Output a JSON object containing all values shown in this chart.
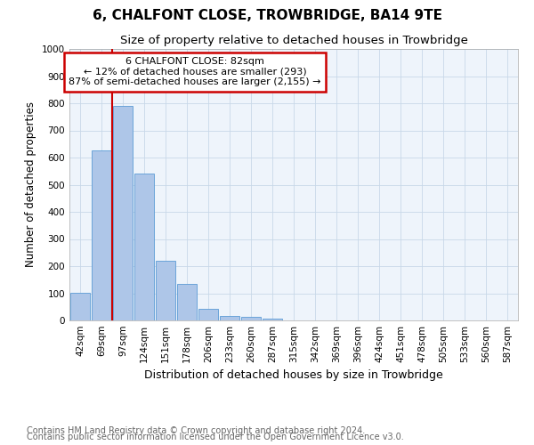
{
  "title": "6, CHALFONT CLOSE, TROWBRIDGE, BA14 9TE",
  "subtitle": "Size of property relative to detached houses in Trowbridge",
  "xlabel": "Distribution of detached houses by size in Trowbridge",
  "ylabel": "Number of detached properties",
  "bar_labels": [
    "42sqm",
    "69sqm",
    "97sqm",
    "124sqm",
    "151sqm",
    "178sqm",
    "206sqm",
    "233sqm",
    "260sqm",
    "287sqm",
    "315sqm",
    "342sqm",
    "369sqm",
    "396sqm",
    "424sqm",
    "451sqm",
    "478sqm",
    "505sqm",
    "533sqm",
    "560sqm",
    "587sqm"
  ],
  "bar_values": [
    103,
    625,
    790,
    540,
    220,
    133,
    42,
    17,
    12,
    8,
    0,
    0,
    0,
    0,
    0,
    0,
    0,
    0,
    0,
    0,
    0
  ],
  "bar_color": "#aec6e8",
  "bar_edge_color": "#5b9bd5",
  "grid_color": "#c8d8e8",
  "background_color": "#eef4fb",
  "annotation_text": "6 CHALFONT CLOSE: 82sqm\n← 12% of detached houses are smaller (293)\n87% of semi-detached houses are larger (2,155) →",
  "annotation_box_color": "#ffffff",
  "annotation_box_edge_color": "#cc0000",
  "vline_color": "#cc0000",
  "vline_x": 1.5,
  "ylim": [
    0,
    1000
  ],
  "yticks": [
    0,
    100,
    200,
    300,
    400,
    500,
    600,
    700,
    800,
    900,
    1000
  ],
  "footnote1": "Contains HM Land Registry data © Crown copyright and database right 2024.",
  "footnote2": "Contains public sector information licensed under the Open Government Licence v3.0.",
  "title_fontsize": 11,
  "subtitle_fontsize": 9.5,
  "xlabel_fontsize": 9,
  "ylabel_fontsize": 8.5,
  "tick_fontsize": 7.5,
  "annot_fontsize": 8,
  "footnote_fontsize": 7
}
